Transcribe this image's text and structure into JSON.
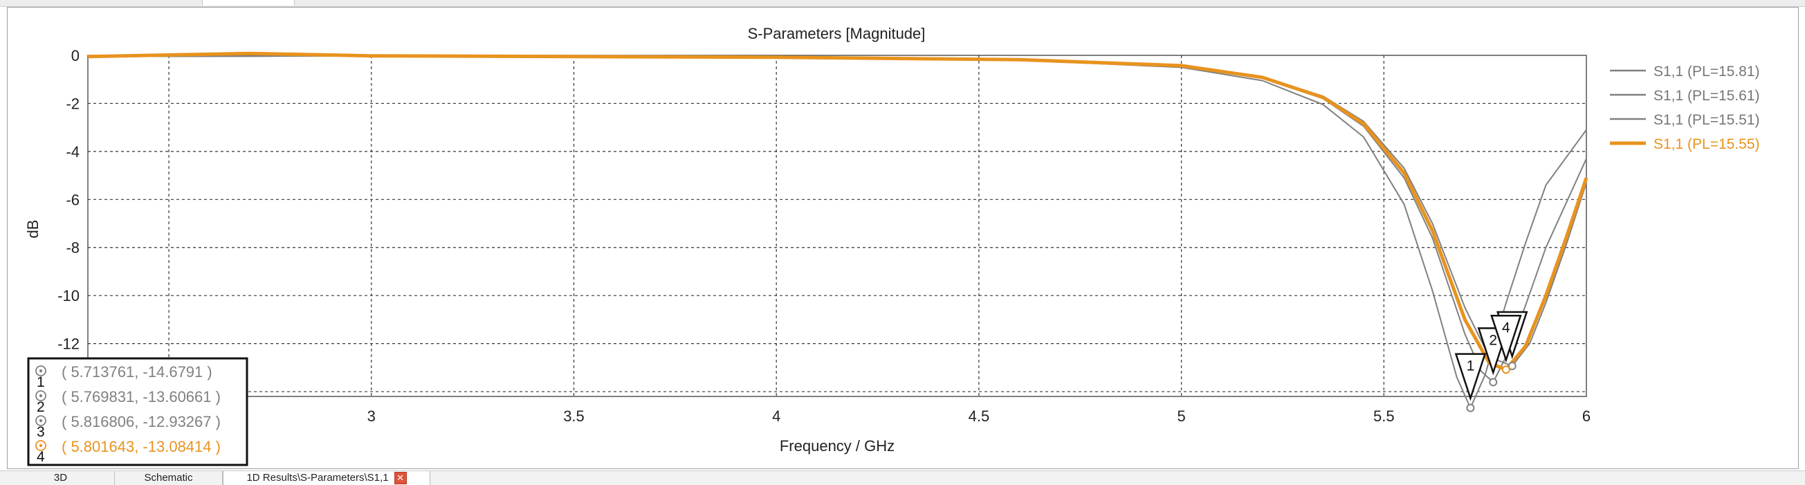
{
  "window": {
    "tabs": [
      {
        "label": "3D"
      },
      {
        "label": "Schematic"
      },
      {
        "label": "1D Results\\S-Parameters\\S1,1"
      }
    ]
  },
  "chart_data": {
    "type": "line",
    "title": "S-Parameters [Magnitude]",
    "xlabel": "Frequency / GHz",
    "ylabel": "dB",
    "xlim": [
      2.3,
      6.0
    ],
    "ylim": [
      -14.2,
      0
    ],
    "x_ticks": [
      "2.5",
      "3",
      "3.5",
      "4",
      "4.5",
      "5",
      "5.5",
      "6"
    ],
    "y_ticks": [
      "0",
      "-2",
      "-4",
      "-6",
      "-8",
      "-10",
      "-12",
      "-14"
    ],
    "grid": true,
    "legend_position": "right",
    "series": [
      {
        "name": "S1,1 (PL=15.81)",
        "color": "#808080",
        "x": [
          2.3,
          3.0,
          4.0,
          4.6,
          5.0,
          5.2,
          5.35,
          5.45,
          5.55,
          5.62,
          5.68,
          5.713761,
          5.75,
          5.8,
          5.85,
          5.9,
          6.0
        ],
        "y": [
          -0.05,
          -0.02,
          -0.1,
          -0.2,
          -0.5,
          -1.05,
          -2.05,
          -3.4,
          -6.2,
          -9.8,
          -13.4,
          -14.6791,
          -13.3,
          -10.4,
          -7.8,
          -5.4,
          -3.1
        ]
      },
      {
        "name": "S1,1 (PL=15.61)",
        "color": "#808080",
        "x": [
          2.3,
          3.0,
          4.0,
          4.6,
          5.0,
          5.2,
          5.35,
          5.45,
          5.55,
          5.62,
          5.7,
          5.74,
          5.769831,
          5.8,
          5.85,
          5.9,
          6.0
        ],
        "y": [
          -0.05,
          -0.02,
          -0.08,
          -0.18,
          -0.45,
          -0.95,
          -1.8,
          -2.95,
          -5.1,
          -7.6,
          -11.6,
          -13.15,
          -13.60661,
          -12.6,
          -10.4,
          -8.0,
          -4.3
        ]
      },
      {
        "name": "S1,1 (PL=15.51)",
        "color": "#808080",
        "x": [
          2.3,
          3.0,
          4.0,
          4.6,
          5.0,
          5.2,
          5.35,
          5.45,
          5.55,
          5.62,
          5.7,
          5.76,
          5.816806,
          5.86,
          5.9,
          5.95,
          6.0
        ],
        "y": [
          -0.05,
          -0.02,
          -0.08,
          -0.17,
          -0.42,
          -0.9,
          -1.7,
          -2.75,
          -4.7,
          -7.0,
          -10.5,
          -12.55,
          -12.93267,
          -12.0,
          -10.3,
          -7.9,
          -5.3
        ]
      },
      {
        "name": "S1,1 (PL=15.55)",
        "color": "#e8931e",
        "x": [
          2.3,
          2.7,
          3.0,
          4.0,
          4.6,
          5.0,
          5.2,
          5.35,
          5.45,
          5.55,
          5.62,
          5.7,
          5.76,
          5.801643,
          5.85,
          5.9,
          5.95,
          6.0
        ],
        "y": [
          -0.05,
          0.08,
          -0.02,
          -0.08,
          -0.18,
          -0.43,
          -0.92,
          -1.75,
          -2.85,
          -4.9,
          -7.3,
          -11.0,
          -12.8,
          -13.08414,
          -12.1,
          -10.0,
          -7.6,
          -5.1
        ]
      }
    ],
    "markers": [
      {
        "id": "1",
        "x": 5.713761,
        "y": -14.6791,
        "series": 0
      },
      {
        "id": "2",
        "x": 5.769831,
        "y": -13.60661,
        "series": 1
      },
      {
        "id": "3",
        "x": 5.816806,
        "y": -12.93267,
        "series": 2
      },
      {
        "id": "4",
        "x": 5.801643,
        "y": -13.08414,
        "series": 3
      }
    ],
    "marker_table": [
      {
        "id": "1",
        "text": "( 5.713761, -14.6791 )",
        "color": "#808080"
      },
      {
        "id": "2",
        "text": "( 5.769831, -13.60661 )",
        "color": "#808080"
      },
      {
        "id": "3",
        "text": "( 5.816806, -12.93267 )",
        "color": "#808080"
      },
      {
        "id": "4",
        "text": "( 5.801643, -13.08414 )",
        "color": "#e8931e"
      }
    ]
  }
}
